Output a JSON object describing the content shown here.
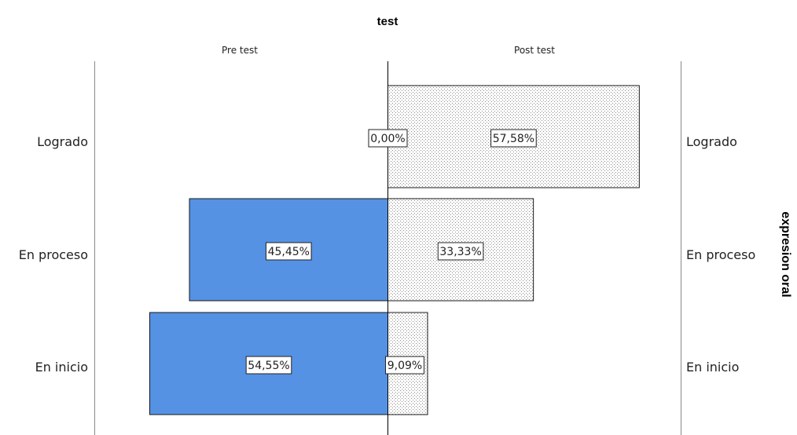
{
  "chart_data": {
    "type": "bar",
    "title": "test",
    "side_title": "expresion oral",
    "panels": [
      "Pre test",
      "Post test"
    ],
    "categories": [
      "Logrado",
      "En proceso",
      "En inicio"
    ],
    "series": [
      {
        "name": "Pre test",
        "values": [
          0.0,
          45.45,
          54.55
        ],
        "labels": [
          "0,00%",
          "45,45%",
          "54,55%"
        ],
        "color": "#5592e3",
        "pattern": "solid"
      },
      {
        "name": "Post test",
        "values": [
          57.58,
          33.33,
          9.09
        ],
        "labels": [
          "57,58%",
          "33,33%",
          "9,09%"
        ],
        "color": "#ffffff",
        "pattern": "dotted"
      }
    ],
    "xlim": [
      0,
      70
    ],
    "legend": "none",
    "grid": false
  }
}
